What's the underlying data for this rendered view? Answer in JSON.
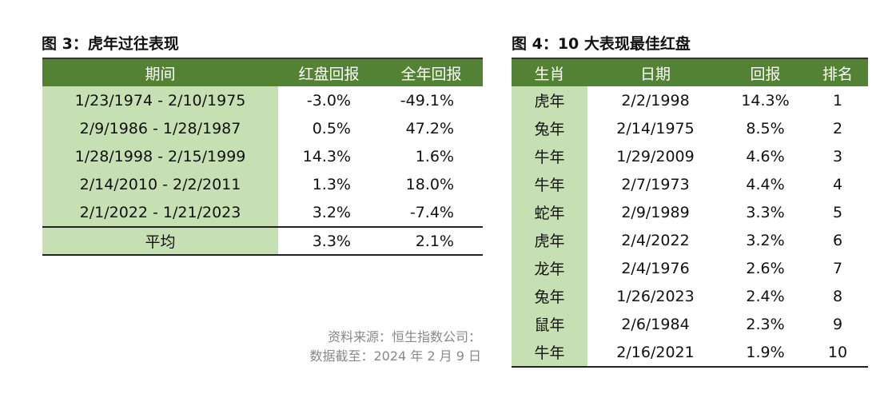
{
  "fig3": {
    "title": "图 3：虎年过往表现",
    "headers": [
      "期间",
      "红盘回报",
      "全年回报"
    ],
    "rows": [
      [
        "1/23/1974 - 2/10/1975",
        "-3.0%",
        "-49.1%"
      ],
      [
        "2/9/1986 - 1/28/1987",
        "0.5%",
        "47.2%"
      ],
      [
        "1/28/1998 - 2/15/1999",
        "14.3%",
        "1.6%"
      ],
      [
        "2/14/2010 - 2/2/2011",
        "1.3%",
        "18.0%"
      ],
      [
        "2/1/2022 - 1/21/2023",
        "3.2%",
        "-7.4%"
      ]
    ],
    "average": [
      "平均",
      "3.3%",
      "2.1%"
    ]
  },
  "fig4": {
    "title": "图 4：10 大表现最佳红盘",
    "headers": [
      "生肖",
      "日期",
      "回报",
      "排名"
    ],
    "rows": [
      [
        "虎年",
        "2/2/1998",
        "14.3%",
        "1"
      ],
      [
        "兔年",
        "2/14/1975",
        "8.5%",
        "2"
      ],
      [
        "牛年",
        "1/29/2009",
        "4.6%",
        "3"
      ],
      [
        "牛年",
        "2/7/1973",
        "4.4%",
        "4"
      ],
      [
        "蛇年",
        "2/9/1989",
        "3.3%",
        "5"
      ],
      [
        "虎年",
        "2/4/2022",
        "3.2%",
        "6"
      ],
      [
        "龙年",
        "2/4/1976",
        "2.6%",
        "7"
      ],
      [
        "兔年",
        "1/26/2023",
        "2.4%",
        "8"
      ],
      [
        "鼠年",
        "2/6/1984",
        "2.3%",
        "9"
      ],
      [
        "牛年",
        "2/16/2021",
        "1.9%",
        "10"
      ]
    ]
  },
  "source": {
    "line1": "资料来源：恒生指数公司：",
    "line2": "数据截至：2024 年 2 月 9 日"
  },
  "colors": {
    "header": "#548235",
    "highlight": "#c6e0b4"
  }
}
